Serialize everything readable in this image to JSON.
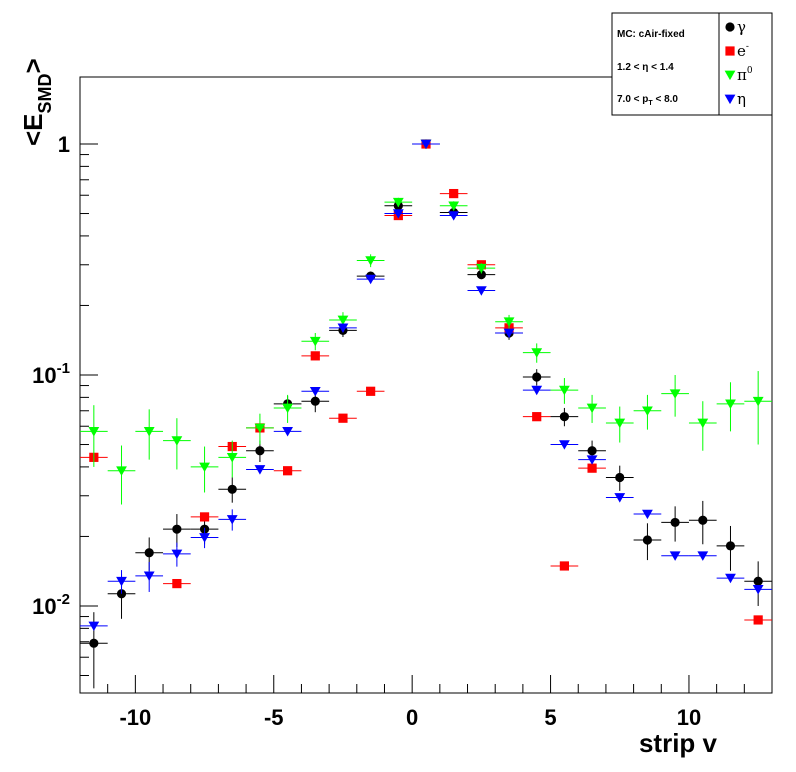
{
  "chart_data": {
    "type": "scatter",
    "title": "",
    "xlabel": "strip v",
    "ylabel": "<E_SMD>",
    "ylabel_main": "<E",
    "ylabel_sub": "SMD",
    "ylabel_close": ">",
    "xlim": [
      -12,
      13
    ],
    "ylim": [
      0.0042,
      1.95
    ],
    "yscale": "log",
    "x_tick_labels": [
      {
        "value": -10,
        "label": "-10"
      },
      {
        "value": -5,
        "label": "-5"
      },
      {
        "value": 0,
        "label": "0"
      },
      {
        "value": 5,
        "label": "5"
      },
      {
        "value": 10,
        "label": "10"
      }
    ],
    "y_tick_labels": [
      {
        "value": 1,
        "base": "1",
        "exp": ""
      },
      {
        "value": 0.1,
        "base": "10",
        "exp": "-1"
      },
      {
        "value": 0.01,
        "base": "10",
        "exp": "-2"
      }
    ],
    "info_box": {
      "lines": [
        "MC: cAir-fixed",
        "1.2 < η < 1.4",
        "7.0 < p_T < 8.0"
      ],
      "pt_line": {
        "pre": "7.0 < p",
        "sub": "T",
        "post": " < 8.0"
      }
    },
    "legend_position": "top-right",
    "series": [
      {
        "name": "γ",
        "marker": "circle",
        "color": "#000000",
        "points": [
          [
            -11.5,
            0.0069,
            0.0025
          ],
          [
            -10.5,
            0.0113,
            0.0025
          ],
          [
            -9.5,
            0.017,
            0.0028
          ],
          [
            -8.5,
            0.0215,
            0.0035
          ],
          [
            -7.5,
            0.0215,
            0.003
          ],
          [
            -6.5,
            0.032,
            0.004
          ],
          [
            -5.5,
            0.047,
            0.005
          ],
          [
            -4.5,
            0.075,
            0.006
          ],
          [
            -3.5,
            0.077,
            0.008
          ],
          [
            -2.5,
            0.156,
            0.01
          ],
          [
            -1.5,
            0.268,
            0.012
          ],
          [
            -0.5,
            0.54,
            0.02
          ],
          [
            0.5,
            1.0,
            0.01
          ],
          [
            1.5,
            0.505,
            0.02
          ],
          [
            2.5,
            0.272,
            0.012
          ],
          [
            3.5,
            0.152,
            0.01
          ],
          [
            4.5,
            0.098,
            0.008
          ],
          [
            5.5,
            0.066,
            0.006
          ],
          [
            6.5,
            0.047,
            0.005
          ],
          [
            7.5,
            0.036,
            0.0045
          ],
          [
            8.5,
            0.0193,
            0.0035
          ],
          [
            9.5,
            0.023,
            0.004
          ],
          [
            10.5,
            0.0235,
            0.005
          ],
          [
            11.5,
            0.0182,
            0.004
          ],
          [
            12.5,
            0.0128,
            0.0028
          ]
        ]
      },
      {
        "name": "e⁻",
        "name_base": "e",
        "name_sup": "-",
        "marker": "square",
        "color": "#ff0000",
        "points": [
          [
            -11.5,
            0.044,
            0
          ],
          [
            -8.5,
            0.0125,
            0
          ],
          [
            -7.5,
            0.0243,
            0
          ],
          [
            -6.5,
            0.049,
            0
          ],
          [
            -5.5,
            0.059,
            0
          ],
          [
            -4.5,
            0.0385,
            0
          ],
          [
            -3.5,
            0.121,
            0
          ],
          [
            -2.5,
            0.065,
            0
          ],
          [
            -1.5,
            0.085,
            0
          ],
          [
            -0.5,
            0.49,
            0
          ],
          [
            0.5,
            1.0,
            0
          ],
          [
            1.5,
            0.61,
            0
          ],
          [
            2.5,
            0.3,
            0
          ],
          [
            3.5,
            0.16,
            0
          ],
          [
            4.5,
            0.066,
            0
          ],
          [
            5.5,
            0.0149,
            0
          ],
          [
            6.5,
            0.0395,
            0
          ],
          [
            12.5,
            0.0087,
            0
          ]
        ]
      },
      {
        "name": "π⁰",
        "name_base": "π",
        "name_sup": "0",
        "marker": "triangle-down",
        "color": "#00ff00",
        "points": [
          [
            -11.5,
            0.057,
            0.017
          ],
          [
            -10.5,
            0.0385,
            0.011
          ],
          [
            -9.5,
            0.057,
            0.014
          ],
          [
            -8.5,
            0.052,
            0.013
          ],
          [
            -7.5,
            0.04,
            0.009
          ],
          [
            -6.5,
            0.044,
            0.008
          ],
          [
            -5.5,
            0.059,
            0.009
          ],
          [
            -4.5,
            0.072,
            0.01
          ],
          [
            -3.5,
            0.14,
            0.012
          ],
          [
            -2.5,
            0.173,
            0.014
          ],
          [
            -1.5,
            0.313,
            0.02
          ],
          [
            -0.5,
            0.56,
            0.025
          ],
          [
            0.5,
            1.0,
            0.01
          ],
          [
            1.5,
            0.54,
            0.025
          ],
          [
            2.5,
            0.29,
            0.015
          ],
          [
            3.5,
            0.17,
            0.012
          ],
          [
            4.5,
            0.125,
            0.012
          ],
          [
            5.5,
            0.086,
            0.011
          ],
          [
            6.5,
            0.072,
            0.01
          ],
          [
            7.5,
            0.062,
            0.011
          ],
          [
            8.5,
            0.07,
            0.012
          ],
          [
            9.5,
            0.083,
            0.017
          ],
          [
            10.5,
            0.062,
            0.015
          ],
          [
            11.5,
            0.075,
            0.018
          ],
          [
            12.5,
            0.077,
            0.027
          ]
        ]
      },
      {
        "name": "η",
        "marker": "triangle-down",
        "color": "#0000ff",
        "points": [
          [
            -11.5,
            0.0082,
            0
          ],
          [
            -10.5,
            0.0128,
            0.0015
          ],
          [
            -9.5,
            0.0135,
            0.002
          ],
          [
            -8.5,
            0.0168,
            0.002
          ],
          [
            -7.5,
            0.0198,
            0.002
          ],
          [
            -6.5,
            0.0237,
            0.0025
          ],
          [
            -5.5,
            0.039,
            0
          ],
          [
            -4.5,
            0.057,
            0
          ],
          [
            -3.5,
            0.085,
            0
          ],
          [
            -2.5,
            0.16,
            0
          ],
          [
            -1.5,
            0.26,
            0
          ],
          [
            -0.5,
            0.5,
            0
          ],
          [
            0.5,
            1.0,
            0
          ],
          [
            1.5,
            0.49,
            0
          ],
          [
            2.5,
            0.232,
            0
          ],
          [
            3.5,
            0.152,
            0
          ],
          [
            4.5,
            0.086,
            0
          ],
          [
            5.5,
            0.05,
            0
          ],
          [
            6.5,
            0.043,
            0
          ],
          [
            7.5,
            0.0295,
            0
          ],
          [
            8.5,
            0.025,
            0
          ],
          [
            9.5,
            0.0165,
            0
          ],
          [
            10.5,
            0.0165,
            0
          ],
          [
            11.5,
            0.0132,
            0
          ],
          [
            12.5,
            0.0118,
            0
          ]
        ]
      }
    ]
  }
}
